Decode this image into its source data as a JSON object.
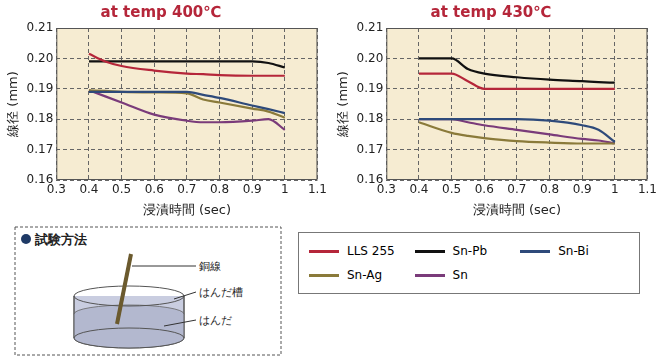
{
  "chart_data": [
    {
      "type": "line",
      "title": "at temp 400℃",
      "x_label": "浸漬時間 (sec)",
      "y_label": "線径 (mm)",
      "x": [
        0.4,
        0.45,
        0.5,
        0.6,
        0.7,
        0.75,
        0.8,
        0.9,
        0.95,
        1.0
      ],
      "series": [
        {
          "name": "LLS 255",
          "color": "#b5263a",
          "values": [
            0.2015,
            0.199,
            0.1975,
            0.196,
            0.195,
            0.1948,
            0.1945,
            0.1943,
            0.1943,
            0.1943
          ]
        },
        {
          "name": "Sn-Pb",
          "color": "#111111",
          "values": [
            0.199,
            0.199,
            0.199,
            0.199,
            0.199,
            0.199,
            0.199,
            0.199,
            0.1985,
            0.197
          ]
        },
        {
          "name": "Sn-Bi",
          "color": "#2e4a7a",
          "values": [
            0.189,
            0.189,
            0.189,
            0.189,
            0.189,
            0.188,
            0.187,
            0.1845,
            0.1833,
            0.182
          ]
        },
        {
          "name": "Sn-Ag",
          "color": "#8a7a3a",
          "values": [
            0.1895,
            0.1893,
            0.189,
            0.1888,
            0.1885,
            0.1865,
            0.1855,
            0.1835,
            0.1825,
            0.1805
          ]
        },
        {
          "name": "Sn",
          "color": "#7a3b7a",
          "values": [
            0.1895,
            0.1875,
            0.1855,
            0.1815,
            0.1795,
            0.179,
            0.179,
            0.1795,
            0.18,
            0.1765
          ]
        }
      ],
      "xlim": [
        0.3,
        1.1
      ],
      "xticks": [
        0.3,
        0.4,
        0.5,
        0.6,
        0.7,
        0.8,
        0.9,
        1.0,
        1.1
      ],
      "ylim": [
        0.16,
        0.21
      ],
      "yticks": [
        0.16,
        0.17,
        0.18,
        0.19,
        {
          "value": 0.2,
          "label": "0.20"
        },
        0.21
      ],
      "grid": true
    },
    {
      "type": "line",
      "title": "at temp 430℃",
      "x_label": "浸漬時間 (sec)",
      "y_label": "線径 (mm)",
      "x": [
        0.4,
        0.5,
        0.55,
        0.6,
        0.7,
        0.8,
        0.9,
        0.95,
        1.0
      ],
      "series": [
        {
          "name": "LLS 255",
          "color": "#b5263a",
          "values": [
            0.195,
            0.195,
            0.1925,
            0.19,
            0.19,
            0.19,
            0.19,
            0.19,
            0.19
          ]
        },
        {
          "name": "Sn-Pb",
          "color": "#111111",
          "values": [
            0.2,
            0.2,
            0.1965,
            0.195,
            0.1938,
            0.193,
            0.1925,
            0.1922,
            0.192
          ]
        },
        {
          "name": "Sn-Bi",
          "color": "#2e4a7a",
          "values": [
            0.18,
            0.18,
            0.18,
            0.18,
            0.18,
            0.1795,
            0.178,
            0.1765,
            0.1725
          ]
        },
        {
          "name": "Sn-Ag",
          "color": "#8a7a3a",
          "values": [
            0.179,
            0.1755,
            0.1745,
            0.1738,
            0.1728,
            0.1723,
            0.172,
            0.172,
            0.172
          ]
        },
        {
          "name": "Sn",
          "color": "#7a3b7a",
          "values": [
            0.18,
            0.18,
            0.179,
            0.178,
            0.1765,
            0.175,
            0.1735,
            0.173,
            0.172
          ]
        }
      ],
      "xlim": [
        0.3,
        1.1
      ],
      "xticks": [
        0.3,
        0.4,
        0.5,
        0.6,
        0.7,
        0.8,
        0.9,
        1.0,
        1.1
      ],
      "ylim": [
        0.16,
        0.21
      ],
      "yticks": [
        0.16,
        0.17,
        0.18,
        0.19,
        {
          "value": 0.2,
          "label": "0.20"
        },
        0.21
      ],
      "grid": true
    }
  ],
  "diagram": {
    "title": "試験方法",
    "labels": [
      "銅線",
      "はんだ槽",
      "はんだ"
    ]
  }
}
